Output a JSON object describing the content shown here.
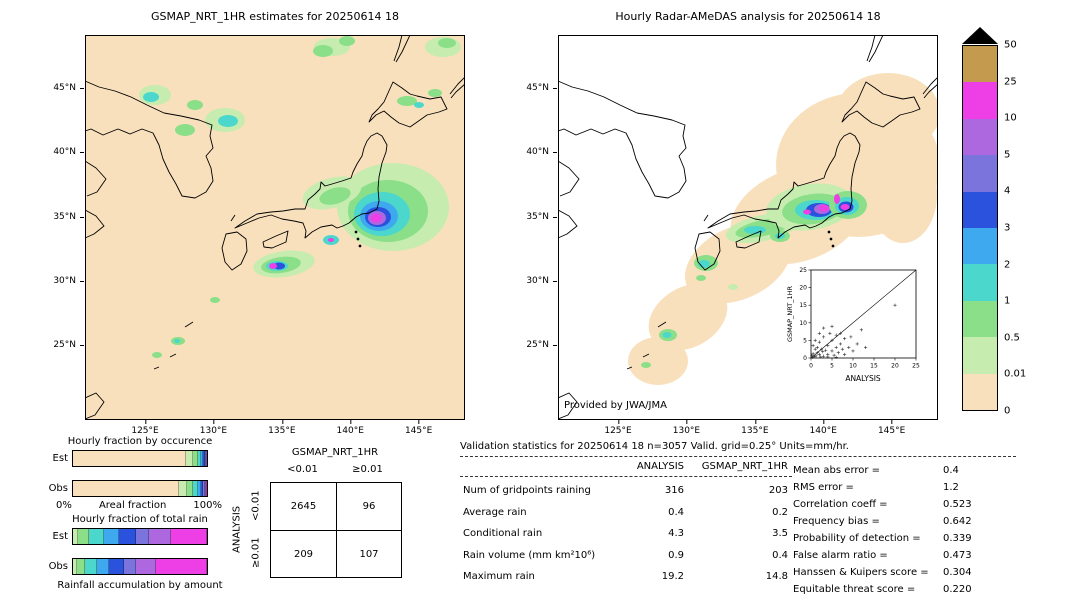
{
  "figure": {
    "date_label": "20250614 18"
  },
  "colorbar": {
    "palette_bottom_to_top": [
      "#f9e0bd",
      "#c6ecaf",
      "#8adf88",
      "#4cd7cc",
      "#3fa9ef",
      "#2a52dd",
      "#7b74dd",
      "#ad68e0",
      "#ee3fe6",
      "#c49a4e"
    ],
    "boundary_labels_top_to_bottom": [
      "50",
      "25",
      "10",
      "5",
      "4",
      "3",
      "2",
      "1",
      "0.5",
      "0.01",
      "0"
    ],
    "over_range_marker": "black-triangle"
  },
  "chart_data": [
    {
      "id": "gsmap_map",
      "type": "heatmap",
      "title": "GSMAP_NRT_1HR estimates for 20250614 18",
      "x_tick_labels": [
        "125°E",
        "130°E",
        "135°E",
        "140°E",
        "145°E"
      ],
      "y_tick_labels": [
        "45°N",
        "40°N",
        "35°N",
        "30°N",
        "25°N"
      ],
      "units": "mm/hr",
      "levels": [
        0,
        0.01,
        0.5,
        1,
        2,
        3,
        4,
        5,
        10,
        25,
        50
      ],
      "description": "Satellite rainfall estimate map over Japan: widespread light background, heavy rain maximum offshore southeast of Kanto (magenta core over 10 mm/hr), rain band south of Shikoku, light rain over central Honshu, near Korea and Hokkaido."
    },
    {
      "id": "radar_map",
      "type": "heatmap",
      "title": "Hourly Radar-AMeDAS analysis for 20250614 18",
      "credit": "Provided by JWA/JMA",
      "x_tick_labels": [
        "125°E",
        "130°E",
        "135°E",
        "140°E",
        "145°E"
      ],
      "y_tick_labels": [
        "45°N",
        "40°N",
        "35°N",
        "30°N",
        "25°N"
      ],
      "units": "mm/hr",
      "levels": [
        0,
        0.01,
        0.5,
        1,
        2,
        3,
        4,
        5,
        10,
        25,
        50
      ],
      "description": "Radar-AMeDAS analysed rainfall: coverage band along the Japanese archipelago, rain band across central Honshu and Kanto with magenta cores, lighter rain over western Japan, Kyushu and the Okinawa area."
    },
    {
      "id": "inset_scatter",
      "type": "scatter",
      "xlabel": "ANALYSIS",
      "ylabel": "GSMAP_NRT_1HR",
      "xlim": [
        0,
        25
      ],
      "ylim": [
        0,
        25
      ],
      "tick_values": [
        0,
        5,
        10,
        15,
        20,
        25
      ],
      "diagonal_line": true,
      "points": [
        [
          0.3,
          0.2
        ],
        [
          0.5,
          1.2
        ],
        [
          0.8,
          0.4
        ],
        [
          1,
          2.5
        ],
        [
          1.2,
          0.6
        ],
        [
          1.5,
          3
        ],
        [
          2,
          1
        ],
        [
          2,
          4.5
        ],
        [
          2.3,
          0.3
        ],
        [
          2.8,
          1.8
        ],
        [
          3,
          0.5
        ],
        [
          3,
          6
        ],
        [
          3.5,
          2.2
        ],
        [
          4,
          1
        ],
        [
          4,
          3.5
        ],
        [
          4.5,
          7
        ],
        [
          5,
          2
        ],
        [
          5,
          5
        ],
        [
          5.5,
          0.8
        ],
        [
          6,
          3
        ],
        [
          6,
          6.5
        ],
        [
          6.5,
          1.5
        ],
        [
          7,
          4
        ],
        [
          7.5,
          2.5
        ],
        [
          8,
          5.5
        ],
        [
          8,
          1
        ],
        [
          9,
          3
        ],
        [
          9.5,
          6
        ],
        [
          10,
          2
        ],
        [
          11,
          4
        ],
        [
          12,
          8
        ],
        [
          13,
          3
        ],
        [
          1,
          5
        ],
        [
          0.5,
          3.5
        ],
        [
          2,
          7
        ],
        [
          3,
          8.5
        ],
        [
          1.5,
          1.5
        ],
        [
          0.2,
          0.8
        ],
        [
          4,
          0.3
        ],
        [
          6,
          0.2
        ],
        [
          20,
          15
        ],
        [
          2.5,
          2.5
        ],
        [
          5,
          9
        ],
        [
          7,
          7
        ]
      ]
    },
    {
      "id": "occurrence_fractions",
      "type": "bar",
      "title": "Hourly fraction by occurence",
      "orientation": "horizontal-stacked",
      "rows": [
        "Est",
        "Obs"
      ],
      "xlabel": "Areal fraction",
      "axis_min_label": "0%",
      "axis_max_label": "100%",
      "est_segments": [
        [
          0,
          84
        ],
        [
          1,
          5.5
        ],
        [
          2,
          3.5
        ],
        [
          3,
          2.5
        ],
        [
          4,
          1.8
        ],
        [
          5,
          1.2
        ],
        [
          6,
          0.8
        ],
        [
          7,
          0.4
        ],
        [
          8,
          0.3
        ]
      ],
      "obs_segments": [
        [
          0,
          79
        ],
        [
          1,
          6
        ],
        [
          2,
          4.5
        ],
        [
          3,
          3.5
        ],
        [
          4,
          2.5
        ],
        [
          5,
          1.8
        ],
        [
          6,
          1.2
        ],
        [
          7,
          0.9
        ],
        [
          8,
          0.6
        ]
      ]
    },
    {
      "id": "total_rain_fractions",
      "type": "bar",
      "title": "Hourly fraction of total rain",
      "orientation": "horizontal-stacked",
      "rows": [
        "Est",
        "Obs"
      ],
      "footer": "Rainfall accumulation by amount",
      "est_segments": [
        [
          1,
          4
        ],
        [
          2,
          8
        ],
        [
          3,
          11
        ],
        [
          4,
          11
        ],
        [
          5,
          13
        ],
        [
          6,
          10
        ],
        [
          7,
          16
        ],
        [
          8,
          27
        ]
      ],
      "obs_segments": [
        [
          1,
          3
        ],
        [
          2,
          6
        ],
        [
          3,
          9
        ],
        [
          4,
          9
        ],
        [
          5,
          11
        ],
        [
          6,
          9
        ],
        [
          7,
          15
        ],
        [
          8,
          38
        ]
      ]
    },
    {
      "id": "contingency_table",
      "type": "table",
      "col_group_label": "GSMAP_NRT_1HR",
      "row_group_label": "ANALYSIS",
      "col_labels": [
        "<0.01",
        "≥0.01"
      ],
      "row_labels": [
        "<0.01",
        "≥0.01"
      ],
      "values": [
        [
          "2645",
          "96"
        ],
        [
          "209",
          "107"
        ]
      ]
    },
    {
      "id": "validation_stats",
      "type": "table",
      "header": "Validation statistics for 20250614 18  n=3057 Valid. grid=0.25° Units=mm/hr.",
      "col_headers": [
        "ANALYSIS",
        "GSMAP_NRT_1HR"
      ],
      "rows": [
        {
          "label": "Num of gridpoints raining",
          "analysis": "316",
          "gsmap": "203"
        },
        {
          "label": "Average rain",
          "analysis": "0.4",
          "gsmap": "0.2"
        },
        {
          "label": "Conditional rain",
          "analysis": "4.3",
          "gsmap": "3.5"
        },
        {
          "label": "Rain volume (mm km²10⁶)",
          "analysis": "0.9",
          "gsmap": "0.4"
        },
        {
          "label": "Maximum rain",
          "analysis": "19.2",
          "gsmap": "14.8"
        }
      ],
      "scores": [
        {
          "label": "Mean abs error =",
          "value": "0.4"
        },
        {
          "label": "RMS error =",
          "value": "1.2"
        },
        {
          "label": "Correlation coeff =",
          "value": "0.523"
        },
        {
          "label": "Frequency bias =",
          "value": "0.642"
        },
        {
          "label": "Probability of detection =",
          "value": "0.339"
        },
        {
          "label": "False alarm ratio =",
          "value": "0.473"
        },
        {
          "label": "Hanssen & Kuipers score =",
          "value": "0.304"
        },
        {
          "label": "Equitable threat score =",
          "value": "0.220"
        }
      ]
    }
  ]
}
